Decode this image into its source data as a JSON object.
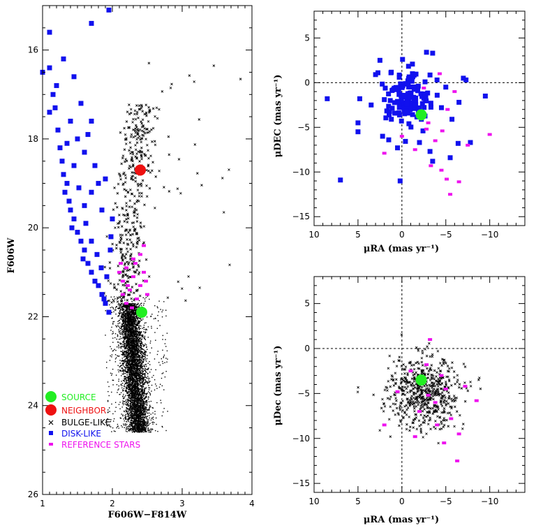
{
  "colors": {
    "source": "#22ee22",
    "neighbor": "#ee1111",
    "bulge": "#000000",
    "disk": "#1111ee",
    "reference": "#ee11ee"
  },
  "chart_data": [
    {
      "id": "cmd",
      "type": "scatter",
      "xlabel": "F606W−F814W",
      "ylabel": "F606W",
      "xlim": [
        1,
        4
      ],
      "ylim": [
        26,
        15
      ],
      "y_inverted": true,
      "xticks": [
        "1",
        "2",
        "3",
        "4"
      ],
      "yticks": [
        "16",
        "18",
        "20",
        "22",
        "24",
        "26"
      ],
      "legend": {
        "position": "bottom-left",
        "entries": [
          {
            "label": "SOURCE",
            "series": "source"
          },
          {
            "label": "NEIGHBOR",
            "series": "neighbor"
          },
          {
            "label": "BULGE-LIKE",
            "series": "bulge"
          },
          {
            "label": "DISK-LIKE",
            "series": "disk"
          },
          {
            "label": "REFERENCE STARS",
            "series": "reference"
          }
        ]
      },
      "series": [
        {
          "name": "source",
          "marker": "circle",
          "points": [
            [
              2.42,
              21.9
            ]
          ]
        },
        {
          "name": "neighbor",
          "marker": "circle",
          "points": [
            [
              2.4,
              18.7
            ]
          ]
        },
        {
          "name": "disk",
          "marker": "square",
          "points": [
            [
              1.95,
              15.1
            ],
            [
              1.7,
              15.4
            ],
            [
              1.0,
              16.5
            ],
            [
              1.1,
              16.4
            ],
            [
              1.15,
              17.0
            ],
            [
              1.2,
              16.8
            ],
            [
              1.1,
              17.4
            ],
            [
              1.18,
              17.3
            ],
            [
              1.22,
              17.8
            ],
            [
              1.25,
              18.2
            ],
            [
              1.28,
              18.5
            ],
            [
              1.3,
              18.8
            ],
            [
              1.35,
              19.0
            ],
            [
              1.32,
              19.2
            ],
            [
              1.38,
              19.4
            ],
            [
              1.4,
              19.6
            ],
            [
              1.45,
              19.8
            ],
            [
              1.42,
              20.0
            ],
            [
              1.5,
              20.1
            ],
            [
              1.55,
              20.3
            ],
            [
              1.6,
              20.5
            ],
            [
              1.58,
              20.7
            ],
            [
              1.65,
              20.8
            ],
            [
              1.7,
              21.0
            ],
            [
              1.75,
              21.2
            ],
            [
              1.8,
              21.3
            ],
            [
              1.85,
              21.5
            ],
            [
              1.9,
              21.7
            ],
            [
              1.95,
              21.9
            ],
            [
              1.88,
              21.6
            ],
            [
              1.6,
              19.5
            ],
            [
              1.7,
              19.2
            ],
            [
              1.8,
              19.0
            ],
            [
              1.9,
              18.9
            ],
            [
              1.75,
              18.6
            ],
            [
              1.6,
              18.3
            ],
            [
              1.5,
              18.0
            ],
            [
              1.4,
              17.6
            ],
            [
              1.55,
              17.2
            ],
            [
              1.1,
              15.6
            ],
            [
              1.3,
              16.2
            ],
            [
              1.45,
              16.6
            ],
            [
              1.35,
              18.1
            ],
            [
              1.45,
              18.6
            ],
            [
              1.52,
              19.1
            ],
            [
              1.62,
              19.9
            ],
            [
              1.7,
              20.3
            ],
            [
              1.78,
              20.6
            ],
            [
              1.84,
              20.9
            ],
            [
              1.92,
              21.1
            ],
            [
              1.97,
              20.5
            ],
            [
              1.98,
              20.2
            ],
            [
              2.0,
              19.8
            ],
            [
              1.85,
              19.6
            ],
            [
              1.65,
              17.9
            ],
            [
              1.7,
              17.6
            ]
          ]
        },
        {
          "name": "reference",
          "marker": "square-small",
          "points": [
            [
              2.1,
              21.0
            ],
            [
              2.15,
              21.2
            ],
            [
              2.2,
              20.9
            ],
            [
              2.25,
              21.4
            ],
            [
              2.3,
              21.1
            ],
            [
              2.35,
              21.6
            ],
            [
              2.4,
              21.3
            ],
            [
              2.45,
              21.0
            ],
            [
              2.5,
              21.5
            ],
            [
              2.2,
              21.7
            ],
            [
              2.3,
              20.7
            ],
            [
              2.4,
              20.6
            ],
            [
              2.45,
              20.4
            ],
            [
              2.15,
              21.5
            ],
            [
              2.28,
              21.8
            ],
            [
              2.38,
              21.9
            ],
            [
              2.48,
              21.2
            ],
            [
              2.12,
              20.8
            ],
            [
              2.33,
              20.8
            ],
            [
              2.22,
              21.3
            ]
          ]
        }
      ]
    },
    {
      "id": "pm-disk",
      "type": "scatter",
      "xlabel": "μRA (mas yr⁻¹)",
      "ylabel": "μDEC (mas yr⁻¹)",
      "xlim": [
        10,
        -14
      ],
      "ylim": [
        -16,
        8
      ],
      "x_inverted": true,
      "xticks": [
        "10",
        "5",
        "0",
        "−5",
        "−10"
      ],
      "yticks": [
        "5",
        "0",
        "−5",
        "−10",
        "−15"
      ],
      "series": [
        {
          "name": "source",
          "marker": "circle",
          "points": [
            [
              -2.2,
              -3.6
            ]
          ]
        },
        {
          "name": "disk",
          "marker": "square",
          "points": [
            [
              7.0,
              -10.9
            ],
            [
              0.2,
              -11.0
            ],
            [
              -2.8,
              3.4
            ],
            [
              -3.5,
              3.3
            ],
            [
              -7.0,
              0.5
            ],
            [
              -7.3,
              0.3
            ],
            [
              -9.5,
              -1.5
            ],
            [
              8.5,
              -1.8
            ],
            [
              2.5,
              2.5
            ],
            [
              3.0,
              0.9
            ],
            [
              4.8,
              -1.8
            ],
            [
              5.0,
              -5.5
            ],
            [
              5.0,
              -4.5
            ],
            [
              2.2,
              -6.0
            ],
            [
              1.5,
              -6.4
            ],
            [
              0.5,
              -7.3
            ],
            [
              -2.0,
              -6.7
            ],
            [
              -3.2,
              -7.7
            ],
            [
              -3.5,
              -8.8
            ],
            [
              -5.5,
              -8.4
            ],
            [
              -6.4,
              -6.8
            ],
            [
              -7.8,
              -6.7
            ],
            [
              -5.7,
              -4.1
            ],
            [
              -4.0,
              0.3
            ],
            [
              -1.0,
              -1.6
            ],
            [
              -1.5,
              -2.5
            ],
            [
              -0.5,
              -3.2
            ],
            [
              0.5,
              -2.1
            ],
            [
              1.0,
              -0.8
            ],
            [
              2.0,
              -1.9
            ],
            [
              -1.8,
              -0.9
            ],
            [
              -2.6,
              -1.5
            ],
            [
              -3.3,
              -2.3
            ],
            [
              -4.5,
              -2.8
            ],
            [
              -0.8,
              -4.6
            ],
            [
              1.2,
              -4.1
            ],
            [
              -6.5,
              -2.2
            ],
            [
              -5.0,
              -0.5
            ],
            [
              3.5,
              -2.5
            ],
            [
              -1.2,
              1.0
            ],
            [
              0.3,
              0.6
            ],
            [
              -2.4,
              -5.4
            ]
          ]
        },
        {
          "name": "reference",
          "marker": "square-small",
          "points": [
            [
              -4.3,
              1.0
            ],
            [
              -2.5,
              -0.6
            ],
            [
              -3.0,
              -4.5
            ],
            [
              -4.6,
              -5.4
            ],
            [
              -5.2,
              -3.0
            ],
            [
              -3.8,
              -6.5
            ],
            [
              -4.5,
              -9.8
            ],
            [
              -6.5,
              -11.1
            ],
            [
              -5.1,
              -10.8
            ],
            [
              -3.3,
              -9.3
            ],
            [
              -1.5,
              -7.5
            ],
            [
              2.0,
              -7.9
            ],
            [
              0.0,
              -6.0
            ],
            [
              -6.0,
              -1.0
            ],
            [
              -10.0,
              -5.8
            ],
            [
              -5.5,
              -12.5
            ],
            [
              -7.5,
              -7.0
            ],
            [
              -2.8,
              -5.2
            ]
          ]
        }
      ]
    },
    {
      "id": "pm-bulge",
      "type": "scatter",
      "xlabel": "μRA (mas yr⁻¹)",
      "ylabel": "μDec (mas yr⁻¹)",
      "xlim": [
        10,
        -14
      ],
      "ylim": [
        -16,
        8
      ],
      "x_inverted": true,
      "xticks": [
        "10",
        "5",
        "0",
        "−5",
        "−10"
      ],
      "yticks": [
        "5",
        "0",
        "−5",
        "−10",
        "−15"
      ],
      "series": [
        {
          "name": "source",
          "marker": "circle",
          "points": [
            [
              -2.2,
              -3.5
            ]
          ]
        },
        {
          "name": "reference",
          "marker": "square-small",
          "points": [
            [
              -3.2,
              1.0
            ],
            [
              -2.8,
              -1.8
            ],
            [
              -4.5,
              -3.0
            ],
            [
              -3.0,
              -5.2
            ],
            [
              -5.0,
              -4.5
            ],
            [
              -2.0,
              -7.0
            ],
            [
              -4.0,
              -8.5
            ],
            [
              -6.5,
              -9.5
            ],
            [
              -1.5,
              -9.8
            ],
            [
              -4.8,
              -10.5
            ],
            [
              -6.3,
              -12.5
            ],
            [
              2.0,
              -8.5
            ],
            [
              -8.5,
              -5.8
            ],
            [
              0.5,
              -4.8
            ],
            [
              -1.0,
              -2.5
            ],
            [
              -3.8,
              -6.0
            ],
            [
              -7.2,
              -4.2
            ],
            [
              -5.6,
              -7.8
            ]
          ]
        }
      ],
      "bulge_cloud": {
        "center": [
          -2.5,
          -5.0
        ],
        "spread": [
          3.5,
          3.3
        ],
        "count": 600
      }
    }
  ]
}
